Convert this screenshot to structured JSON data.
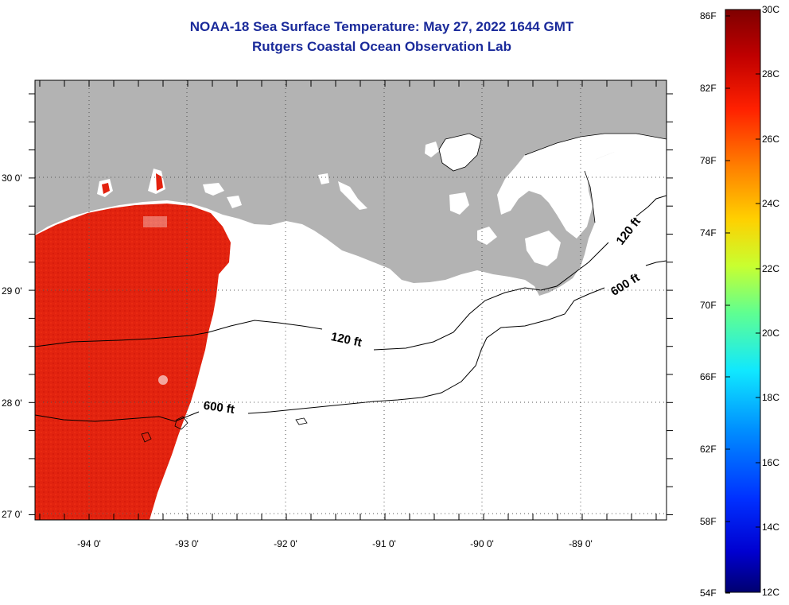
{
  "title": "NOAA-18 Sea Surface Temperature:  May 27, 2022 1644 GMT",
  "subtitle": "Rutgers Coastal Ocean Observation Lab",
  "map": {
    "lon_labels": [
      "-94 0'",
      "-93 0'",
      "-92 0'",
      "-91 0'",
      "-90 0'",
      "-89 0'"
    ],
    "lat_labels": [
      "30 0'",
      "29 0'",
      "28 0'",
      "27 0'"
    ],
    "contours": [
      {
        "label": "120 ft"
      },
      {
        "label": "600 ft"
      },
      {
        "label": "120 ft"
      },
      {
        "label": "600 ft"
      }
    ],
    "colors": {
      "land": "#b3b3b3",
      "sst_warm": "#e3220f",
      "water_no_data": "#ffffff",
      "contour": "#000000"
    }
  },
  "colorbar": {
    "fahrenheit": [
      "86F",
      "82F",
      "78F",
      "74F",
      "70F",
      "66F",
      "62F",
      "58F",
      "54F"
    ],
    "celsius": [
      "30C",
      "28C",
      "26C",
      "24C",
      "22C",
      "20C",
      "18C",
      "16C",
      "14C",
      "12C"
    ],
    "stops": [
      "#7f0000",
      "#d40000",
      "#ff3000",
      "#ff8a00",
      "#ffd800",
      "#d8ff20",
      "#7cff7a",
      "#20ffd8",
      "#00c8ff",
      "#0070ff",
      "#0010ff",
      "#00008f"
    ]
  }
}
